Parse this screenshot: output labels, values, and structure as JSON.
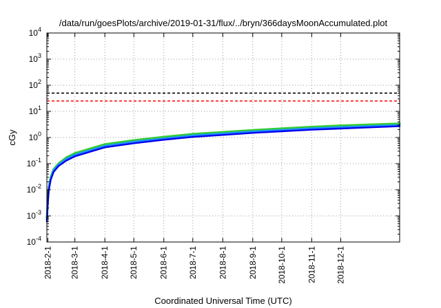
{
  "chart_data": {
    "type": "line",
    "title": "/data/run/goesPlots/archive/2019-01-31/flux/../bryn/366daysMoonAccumulated.plot",
    "xlabel": "Coordinated Universal Time (UTC)",
    "ylabel": "cGy",
    "yscale": "log",
    "xlim": [
      "2018-01-31",
      "2019-01-31"
    ],
    "ylim": [
      0.0001,
      10000
    ],
    "x_ticks": [
      "2018-2-1",
      "2018-3-1",
      "2018-4-1",
      "2018-5-1",
      "2018-6-1",
      "2018-7-1",
      "2018-8-1",
      "2018-9-1",
      "2018-10-1",
      "2018-11-1",
      "2018-12-1"
    ],
    "y_ticks": [
      {
        "value": 0.0001,
        "base": "10",
        "exp": "-4"
      },
      {
        "value": 0.001,
        "base": "10",
        "exp": "-3"
      },
      {
        "value": 0.01,
        "base": "10",
        "exp": "-2"
      },
      {
        "value": 0.1,
        "base": "10",
        "exp": "-1"
      },
      {
        "value": 1,
        "base": "10",
        "exp": "0"
      },
      {
        "value": 10,
        "base": "10",
        "exp": "1"
      },
      {
        "value": 100,
        "base": "10",
        "exp": "2"
      },
      {
        "value": 1000,
        "base": "10",
        "exp": "3"
      },
      {
        "value": 10000,
        "base": "10",
        "exp": "4"
      }
    ],
    "grid": true,
    "series": [
      {
        "color": "#33cc33",
        "values": [
          {
            "x": "2018-01-31",
            "y": 0.0008
          },
          {
            "x": "2018-02-01",
            "y": 0.004
          },
          {
            "x": "2018-02-02",
            "y": 0.012
          },
          {
            "x": "2018-02-04",
            "y": 0.03
          },
          {
            "x": "2018-02-07",
            "y": 0.06
          },
          {
            "x": "2018-02-12",
            "y": 0.1
          },
          {
            "x": "2018-02-20",
            "y": 0.17
          },
          {
            "x": "2018-03-01",
            "y": 0.25
          },
          {
            "x": "2018-04-01",
            "y": 0.55
          },
          {
            "x": "2018-05-01",
            "y": 0.78
          },
          {
            "x": "2018-06-01",
            "y": 1.05
          },
          {
            "x": "2018-07-01",
            "y": 1.35
          },
          {
            "x": "2018-08-01",
            "y": 1.6
          },
          {
            "x": "2018-09-01",
            "y": 1.9
          },
          {
            "x": "2018-10-01",
            "y": 2.2
          },
          {
            "x": "2018-11-01",
            "y": 2.55
          },
          {
            "x": "2018-12-01",
            "y": 2.85
          },
          {
            "x": "2019-01-31",
            "y": 3.4
          }
        ]
      },
      {
        "color": "#1e90ff",
        "values": [
          {
            "x": "2018-01-31",
            "y": 0.0007
          },
          {
            "x": "2018-02-01",
            "y": 0.0035
          },
          {
            "x": "2018-02-02",
            "y": 0.011
          },
          {
            "x": "2018-02-04",
            "y": 0.027
          },
          {
            "x": "2018-02-07",
            "y": 0.055
          },
          {
            "x": "2018-02-12",
            "y": 0.09
          },
          {
            "x": "2018-02-20",
            "y": 0.15
          },
          {
            "x": "2018-03-01",
            "y": 0.22
          },
          {
            "x": "2018-04-01",
            "y": 0.48
          },
          {
            "x": "2018-05-01",
            "y": 0.69
          },
          {
            "x": "2018-06-01",
            "y": 0.92
          },
          {
            "x": "2018-07-01",
            "y": 1.2
          },
          {
            "x": "2018-08-01",
            "y": 1.42
          },
          {
            "x": "2018-09-01",
            "y": 1.7
          },
          {
            "x": "2018-10-01",
            "y": 1.95
          },
          {
            "x": "2018-11-01",
            "y": 2.25
          },
          {
            "x": "2018-12-01",
            "y": 2.5
          },
          {
            "x": "2019-01-31",
            "y": 3.0
          }
        ]
      },
      {
        "color": "#0000ee",
        "values": [
          {
            "x": "2018-01-31",
            "y": 0.0006
          },
          {
            "x": "2018-02-01",
            "y": 0.003
          },
          {
            "x": "2018-02-02",
            "y": 0.0095
          },
          {
            "x": "2018-02-04",
            "y": 0.024
          },
          {
            "x": "2018-02-07",
            "y": 0.048
          },
          {
            "x": "2018-02-12",
            "y": 0.08
          },
          {
            "x": "2018-02-20",
            "y": 0.13
          },
          {
            "x": "2018-03-01",
            "y": 0.19
          },
          {
            "x": "2018-04-01",
            "y": 0.42
          },
          {
            "x": "2018-05-01",
            "y": 0.6
          },
          {
            "x": "2018-06-01",
            "y": 0.82
          },
          {
            "x": "2018-07-01",
            "y": 1.05
          },
          {
            "x": "2018-08-01",
            "y": 1.25
          },
          {
            "x": "2018-09-01",
            "y": 1.5
          },
          {
            "x": "2018-10-01",
            "y": 1.72
          },
          {
            "x": "2018-11-01",
            "y": 1.98
          },
          {
            "x": "2018-12-01",
            "y": 2.2
          },
          {
            "x": "2019-01-31",
            "y": 2.7
          }
        ]
      }
    ],
    "reference_lines": [
      {
        "y": 50,
        "color": "#000000"
      },
      {
        "y": 25,
        "color": "#ff0000"
      }
    ]
  }
}
